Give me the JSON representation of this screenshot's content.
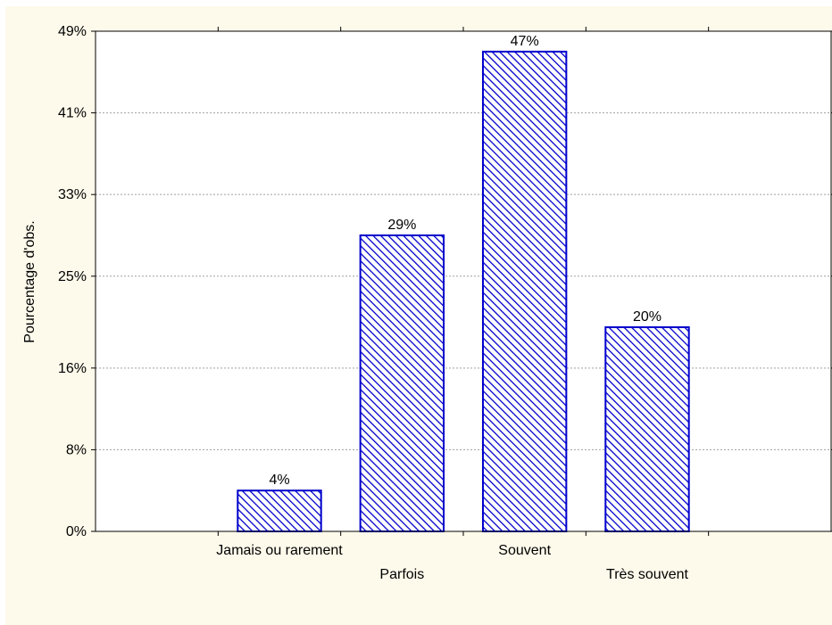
{
  "colors": {
    "background": "#fefaeb",
    "plot_background": "#ffffff",
    "bar_border": "#0000cc",
    "bar_hatch": "#0000cc",
    "gridline": "#a0a0a0",
    "axis": "#000000"
  },
  "chart_data": {
    "type": "bar",
    "title": "",
    "xlabel": "",
    "ylabel": "Pourcentage d'obs.",
    "ylim": [
      0,
      49
    ],
    "grid": "horizontal dashed",
    "bar_fill": "diagonal hatch",
    "categories": [
      "",
      "Jamais ou rarement",
      "Parfois",
      "Souvent",
      "Très souvent",
      ""
    ],
    "values": [
      null,
      4,
      29,
      47,
      20,
      null
    ],
    "data_labels": [
      "",
      "4%",
      "29%",
      "47%",
      "20%",
      ""
    ],
    "y_ticks": [
      {
        "value": 0,
        "label": "0%"
      },
      {
        "value": 8,
        "label": "8%"
      },
      {
        "value": 16,
        "label": "16%"
      },
      {
        "value": 25,
        "label": "25%"
      },
      {
        "value": 33,
        "label": "33%"
      },
      {
        "value": 41,
        "label": "41%"
      },
      {
        "value": 49,
        "label": "49%"
      }
    ]
  }
}
